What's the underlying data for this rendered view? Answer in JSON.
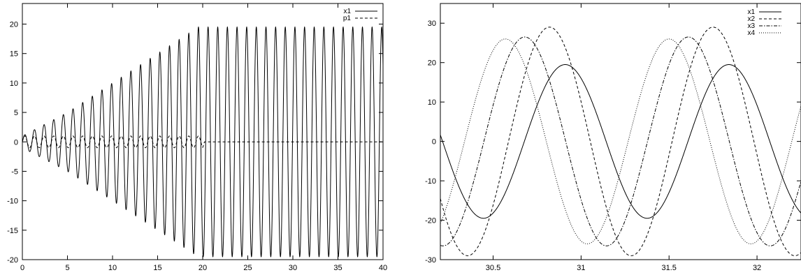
{
  "chart_data": [
    {
      "type": "line",
      "title": "",
      "xlabel": "",
      "ylabel": "",
      "xlim": [
        0,
        40
      ],
      "ylim": [
        -20,
        23.5
      ],
      "xticks": [
        "0",
        "5",
        "10",
        "15",
        "20",
        "25",
        "30",
        "35",
        "40"
      ],
      "yticks": [
        "20",
        "15",
        "10",
        "5",
        "0",
        "-5",
        "-10",
        "-15",
        "-20"
      ],
      "grid": false,
      "legend_position": "top-right",
      "series": [
        {
          "name": "x1",
          "style": "solid",
          "color": "#000000",
          "model": "growing sinusoid with ~1.07 time-unit period; amplitude rises roughly linearly from ~1 at t=0 to ~19.5 at t=19.5, then stays constant at ~19.5 until t=40",
          "envelope_points": [
            {
              "x": 0,
              "y": 1.0
            },
            {
              "x": 5,
              "y": 5.0
            },
            {
              "x": 10,
              "y": 10.0
            },
            {
              "x": 15,
              "y": 15.0
            },
            {
              "x": 19.5,
              "y": 19.5
            },
            {
              "x": 40,
              "y": 19.5
            }
          ],
          "period": 1.07
        },
        {
          "name": "p1",
          "style": "dashed",
          "color": "#000000",
          "model": "small oscillation of amplitude ~1 between t=0 and t=20, then flat at 0 until t=40",
          "envelope_points": [
            {
              "x": 0,
              "y": 1.0
            },
            {
              "x": 20,
              "y": 1.0
            },
            {
              "x": 20.2,
              "y": 0.0
            },
            {
              "x": 40,
              "y": 0.0
            }
          ],
          "period": 1.07
        }
      ]
    },
    {
      "type": "line",
      "title": "",
      "xlabel": "",
      "ylabel": "",
      "xlim": [
        30.2,
        32.25
      ],
      "ylim": [
        -30,
        35
      ],
      "xticks": [
        "30.5",
        "31",
        "31.5",
        "32"
      ],
      "yticks": [
        "30",
        "20",
        "10",
        "0",
        "-10",
        "-20",
        "-30"
      ],
      "grid": false,
      "legend_position": "top-right",
      "series": [
        {
          "name": "x1",
          "style": "solid",
          "color": "#000000",
          "amplitude": 19.5,
          "period": 0.93,
          "peak_at": 30.91
        },
        {
          "name": "x2",
          "style": "dashed",
          "color": "#000000",
          "amplitude": 29.0,
          "period": 0.93,
          "peak_at": 30.82
        },
        {
          "name": "x3",
          "style": "dashdot",
          "color": "#000000",
          "amplitude": 26.5,
          "period": 0.93,
          "peak_at": 30.68
        },
        {
          "name": "x4",
          "style": "dotted",
          "color": "#000000",
          "amplitude": 26.0,
          "period": 0.93,
          "peak_at": 30.57
        }
      ]
    }
  ]
}
